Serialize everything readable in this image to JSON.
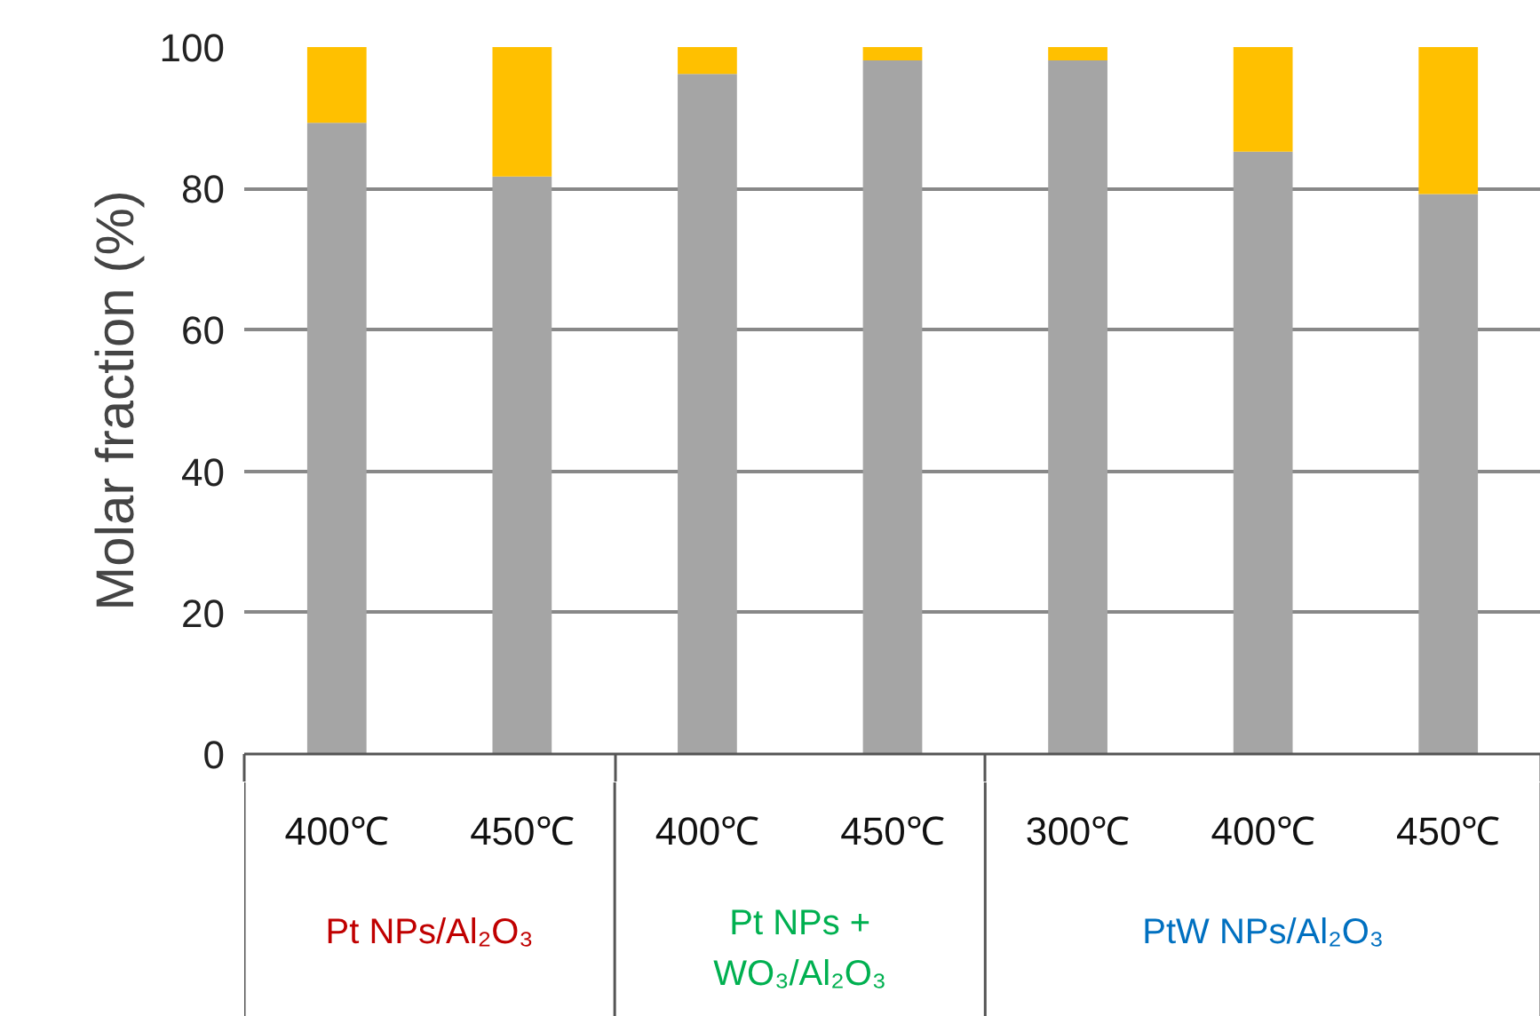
{
  "chart_data": {
    "type": "bar",
    "stacked": true,
    "ylabel": "Molar fraction (%)",
    "categories": [
      "400℃",
      "450℃",
      "400℃",
      "450℃",
      "300℃",
      "400℃",
      "450℃"
    ],
    "series": [
      {
        "color": "#a5a5a5",
        "values": [
          89.3,
          81.7,
          96.2,
          98.1,
          98.1,
          85.2,
          79.2
        ]
      },
      {
        "color": "#ffc000",
        "values": [
          10.7,
          18.3,
          3.8,
          1.9,
          1.9,
          14.8,
          20.8
        ]
      }
    ],
    "ylim": [
      0,
      100
    ],
    "yticks": [
      0,
      20,
      40,
      60,
      80,
      100
    ],
    "grid": "y",
    "annotations": [
      "Pt NPs/Al₂O₃",
      "Pt NPs +\nWO₃/Al₂O₃",
      "PtW NPs/Al₂O₃"
    ]
  }
}
